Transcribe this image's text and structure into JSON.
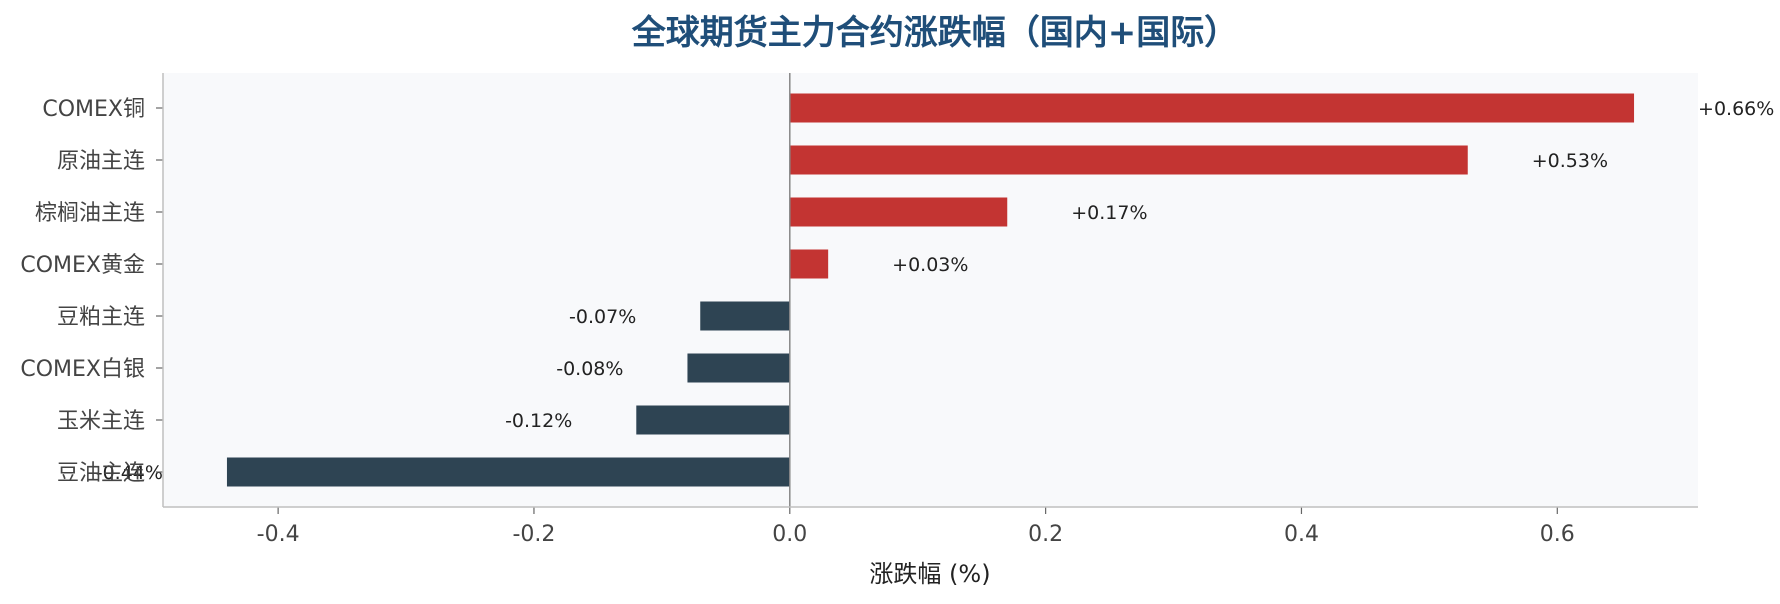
{
  "chart_data": {
    "type": "bar",
    "orientation": "horizontal",
    "title": "全球期货主力合约涨跌幅（国内+国际）",
    "xlabel": "涨跌幅 (%)",
    "ylabel": "",
    "categories": [
      "COMEX铜",
      "原油主连",
      "棕榈油主连",
      "COMEX黄金",
      "豆粕主连",
      "COMEX白银",
      "玉米主连",
      "豆油主连"
    ],
    "values": [
      0.66,
      0.53,
      0.17,
      0.03,
      -0.07,
      -0.08,
      -0.12,
      -0.44
    ],
    "value_labels": [
      "+0.66%",
      "+0.53%",
      "+0.17%",
      "+0.03%",
      "-0.07%",
      "-0.08%",
      "-0.12%",
      "-0.44%"
    ],
    "xlim": [
      -0.49,
      0.71
    ],
    "xticks": [
      -0.4,
      -0.2,
      0.0,
      0.2,
      0.4,
      0.6
    ],
    "xtick_labels": [
      "-0.4",
      "-0.2",
      "0.0",
      "0.2",
      "0.4",
      "0.6"
    ],
    "grid": false,
    "legend": "none",
    "colors": {
      "positive": "#c33432",
      "negative": "#2e4453",
      "plot_background": "#f8f9fb",
      "title": "#1f4e79"
    }
  }
}
